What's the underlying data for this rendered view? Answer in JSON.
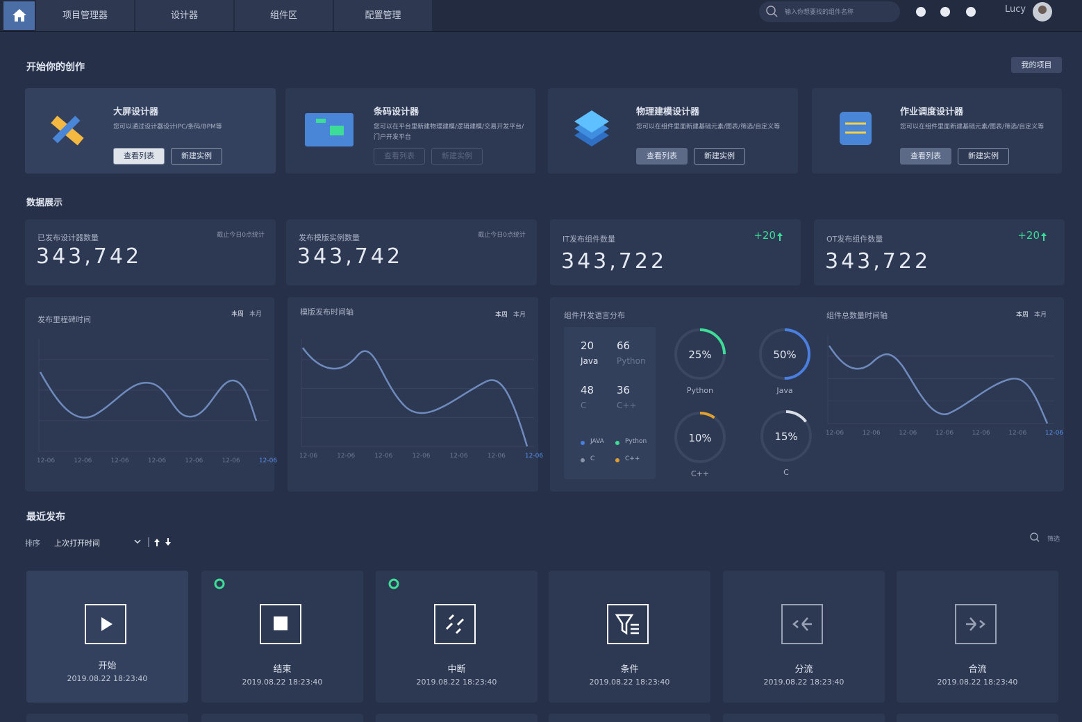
{
  "nav": {
    "items": [
      "项目管理器",
      "设计器",
      "组件区",
      "配置管理"
    ],
    "search_placeholder": "输入你想要找的组件名称",
    "user": "Lucy"
  },
  "create": {
    "title": "开始你的创作",
    "button": "我的项目",
    "cards": [
      {
        "title": "大屏设计器",
        "desc": "您可以通过设计器设计IPC/条码/BPM等",
        "buttons": [
          "查看列表",
          "新建实例"
        ]
      },
      {
        "title": "条码设计器",
        "desc": "您可以在平台里新建物理建模/逻辑建模/交易开发平台/门户开发平台",
        "buttons": [
          "查看列表",
          "新建实例"
        ]
      },
      {
        "title": "物理建模设计器",
        "desc": "您可以在组件里面新建基础元素/图表/筛选/自定义等",
        "buttons": [
          "查看列表",
          "新建实例"
        ]
      },
      {
        "title": "作业调度设计器",
        "desc": "您可以在组件里面新建基础元素/图表/筛选/自定义等",
        "buttons": [
          "查看列表",
          "新建实例"
        ]
      }
    ]
  },
  "data": {
    "title": "数据展示",
    "stats": [
      {
        "label": "已发布设计器数量",
        "value": "343,742",
        "note": "截止今日0点统计"
      },
      {
        "label": "发布模版实例数量",
        "value": "343,742",
        "note": "截止今日0点统计"
      },
      {
        "label": "IT发布组件数量",
        "value": "343,722",
        "delta": "+20"
      },
      {
        "label": "OT发布组件数量",
        "value": "343,722",
        "delta": "+20"
      }
    ],
    "charts": [
      {
        "title": "发布里程碑时间",
        "tabs": [
          "本周",
          "本月"
        ],
        "x": [
          "12-06",
          "12-06",
          "12-06",
          "12-06",
          "12-06",
          "12-06",
          "12-06"
        ]
      },
      {
        "title": "模版发布时间轴",
        "tabs": [
          "本周",
          "本月"
        ],
        "x": [
          "12-06",
          "12-06",
          "12-06",
          "12-06",
          "12-06",
          "12-06",
          "12-06"
        ]
      },
      {
        "title": "组件总数量时间轴",
        "tabs": [
          "本周",
          "本月"
        ],
        "x": [
          "12-06",
          "12-06",
          "12-06",
          "12-06",
          "12-06",
          "12-06",
          "12-06"
        ]
      }
    ],
    "languages": {
      "title": "组件开发语言分布",
      "counts": [
        {
          "value": 20,
          "name": "Java"
        },
        {
          "value": 66,
          "name": "Python"
        },
        {
          "value": 48,
          "name": "C"
        },
        {
          "value": 36,
          "name": "C++"
        }
      ],
      "legend": [
        {
          "name": "JAVA",
          "color": "#4a7fe0"
        },
        {
          "name": "Python",
          "color": "#3ddc97"
        },
        {
          "name": "C",
          "color": "#8a93a8"
        },
        {
          "name": "C++",
          "color": "#e0a030"
        }
      ],
      "donuts": [
        {
          "name": "Python",
          "value": 25,
          "value_label": "25%",
          "color": "#3ddc97"
        },
        {
          "name": "Java",
          "value": 50,
          "value_label": "50%",
          "color": "#4a7fe0"
        },
        {
          "name": "C++",
          "value": 10,
          "value_label": "10%",
          "color": "#e0a030"
        },
        {
          "name": "C",
          "value": 15,
          "value_label": "15%",
          "color": "#d8dde6"
        }
      ]
    }
  },
  "recent": {
    "title": "最近发布",
    "sort_label": "排序",
    "sort_value": "上次打开时间",
    "filter": "筛选",
    "items": [
      {
        "name": "开始",
        "time": "2019.08.22 18:23:40"
      },
      {
        "name": "结束",
        "time": "2019.08.22 18:23:40"
      },
      {
        "name": "中断",
        "time": "2019.08.22 18:23:40"
      },
      {
        "name": "条件",
        "time": "2019.08.22 18:23:40"
      },
      {
        "name": "分流",
        "time": "2019.08.22 18:23:40"
      },
      {
        "name": "合流",
        "time": "2019.08.22 18:23:40"
      }
    ]
  }
}
